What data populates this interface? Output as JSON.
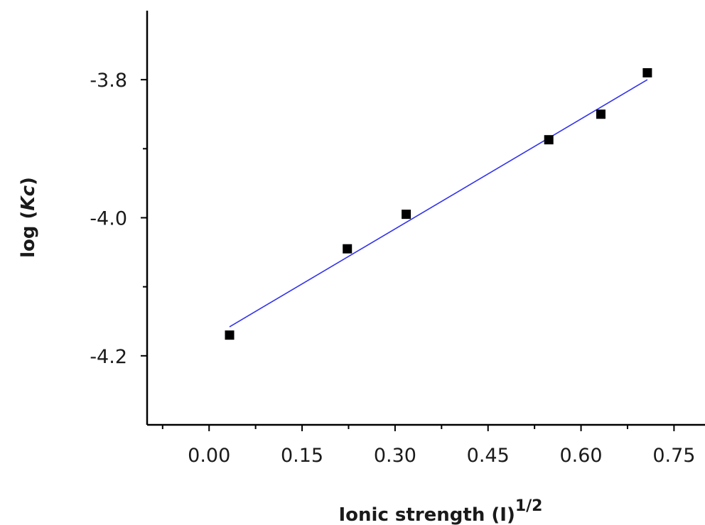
{
  "chart_data": {
    "type": "scatter",
    "xlabel": "Ionic strength (I)",
    "xlabel_sup": "1/2",
    "ylabel_prefix": "log (",
    "ylabel_italic": "Kc",
    "ylabel_suffix": ")",
    "xlim": [
      -0.1,
      0.8
    ],
    "ylim": [
      -4.3,
      -3.7
    ],
    "xticks": [
      0.0,
      0.15,
      0.3,
      0.45,
      0.6,
      0.75
    ],
    "xtick_labels": [
      "0.00",
      "0.15",
      "0.30",
      "0.45",
      "0.60",
      "0.75"
    ],
    "x_minor_ticks": [
      -0.075,
      0.075,
      0.225,
      0.375,
      0.525,
      0.675
    ],
    "yticks": [
      -3.8,
      -4.0,
      -4.2
    ],
    "ytick_labels": [
      "-3.8",
      "-4.0",
      "-4.2"
    ],
    "y_minor_ticks": [
      -3.9,
      -4.1
    ],
    "grid": false,
    "series": [
      {
        "marker": "square",
        "color": "#000000",
        "points": [
          {
            "x": 0.033,
            "y": -4.17
          },
          {
            "x": 0.223,
            "y": -4.045
          },
          {
            "x": 0.318,
            "y": -3.995
          },
          {
            "x": 0.548,
            "y": -3.887
          },
          {
            "x": 0.632,
            "y": -3.85
          },
          {
            "x": 0.707,
            "y": -3.79
          }
        ]
      }
    ],
    "fit_line": {
      "color": "#3333ee",
      "points": [
        {
          "x": 0.033,
          "y": -4.158
        },
        {
          "x": 0.707,
          "y": -3.8
        }
      ]
    }
  }
}
